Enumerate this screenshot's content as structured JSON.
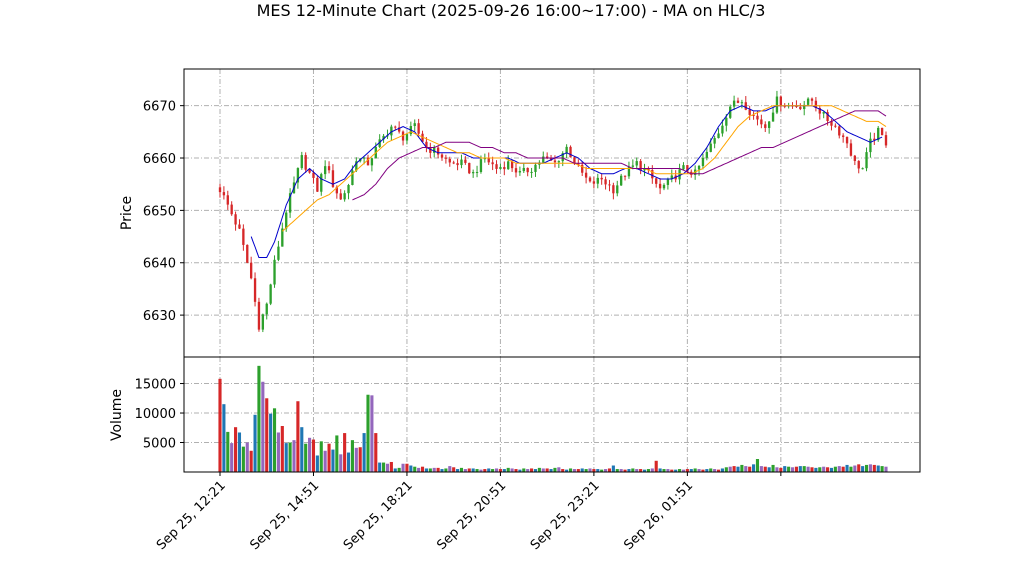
{
  "chart_data": {
    "type": "candlestick",
    "title": "MES 12-Minute Chart (2025-09-26 16:00~17:00) - MA on HLC/3",
    "x_tick_labels": [
      "Sep 25, 12:21",
      "Sep 25, 14:51",
      "Sep 25, 18:21",
      "Sep 25, 20:51",
      "Sep 25, 23:21",
      "Sep 26, 01:51"
    ],
    "price_panel": {
      "ylabel": "Price",
      "ylim": [
        6622,
        6677
      ],
      "yticks": [
        6630,
        6640,
        6650,
        6660,
        6670
      ],
      "grid": true,
      "up_color": "#2ca02c",
      "down_color": "#d62728",
      "close_anchors": [
        [
          0,
          6654
        ],
        [
          2,
          6651
        ],
        [
          5,
          6646
        ],
        [
          8,
          6637
        ],
        [
          10,
          6628
        ],
        [
          12,
          6632
        ],
        [
          14,
          6640
        ],
        [
          17,
          6650
        ],
        [
          19,
          6655
        ],
        [
          21,
          6660
        ],
        [
          23,
          6657
        ],
        [
          25,
          6654
        ],
        [
          27,
          6659
        ],
        [
          29,
          6655
        ],
        [
          31,
          6652
        ],
        [
          33,
          6655
        ],
        [
          35,
          6660
        ],
        [
          38,
          6659
        ],
        [
          41,
          6663
        ],
        [
          44,
          6666
        ],
        [
          47,
          6664
        ],
        [
          50,
          6666
        ],
        [
          53,
          6662
        ],
        [
          56,
          6661
        ],
        [
          59,
          6659
        ],
        [
          62,
          6659
        ],
        [
          65,
          6657
        ],
        [
          68,
          6660
        ],
        [
          71,
          6658
        ],
        [
          74,
          6659
        ],
        [
          77,
          6657
        ],
        [
          80,
          6658
        ],
        [
          83,
          6660
        ],
        [
          86,
          6659
        ],
        [
          89,
          6662
        ],
        [
          92,
          6658
        ],
        [
          95,
          6655
        ],
        [
          98,
          6656
        ],
        [
          101,
          6654
        ],
        [
          104,
          6657
        ],
        [
          107,
          6659
        ],
        [
          110,
          6657
        ],
        [
          113,
          6654
        ],
        [
          116,
          6656
        ],
        [
          119,
          6658
        ],
        [
          122,
          6657
        ],
        [
          125,
          6661
        ],
        [
          128,
          6665
        ],
        [
          131,
          6670
        ],
        [
          134,
          6671
        ],
        [
          137,
          6668
        ],
        [
          140,
          6666
        ],
        [
          143,
          6671
        ],
        [
          146,
          6670
        ],
        [
          149,
          6670
        ],
        [
          152,
          6671
        ],
        [
          155,
          6668
        ],
        [
          158,
          6666
        ],
        [
          161,
          6663
        ],
        [
          163,
          6659
        ],
        [
          165,
          6658
        ],
        [
          167,
          6663
        ],
        [
          169,
          6665
        ],
        [
          171,
          6663
        ]
      ],
      "ma_fast_color": "#0000cc",
      "ma_mid_color": "#ffa500",
      "ma_slow_color": "#800080",
      "ma_fast_anchors": [
        [
          8,
          6645
        ],
        [
          10,
          6641
        ],
        [
          12,
          6641
        ],
        [
          14,
          6644
        ],
        [
          17,
          6651
        ],
        [
          20,
          6656
        ],
        [
          23,
          6658
        ],
        [
          26,
          6656
        ],
        [
          29,
          6655
        ],
        [
          32,
          6656
        ],
        [
          35,
          6659
        ],
        [
          38,
          6661
        ],
        [
          41,
          6663
        ],
        [
          44,
          6665
        ],
        [
          47,
          6666
        ],
        [
          50,
          6665
        ],
        [
          53,
          6662
        ],
        [
          56,
          6661
        ],
        [
          59,
          6661
        ],
        [
          62,
          6661
        ],
        [
          65,
          6660
        ],
        [
          68,
          6660
        ],
        [
          71,
          6660
        ],
        [
          74,
          6660
        ],
        [
          77,
          6659
        ],
        [
          80,
          6659
        ],
        [
          83,
          6659
        ],
        [
          86,
          6660
        ],
        [
          89,
          6661
        ],
        [
          92,
          6660
        ],
        [
          95,
          6658
        ],
        [
          98,
          6657
        ],
        [
          101,
          6657
        ],
        [
          104,
          6658
        ],
        [
          107,
          6658
        ],
        [
          110,
          6657
        ],
        [
          113,
          6656
        ],
        [
          116,
          6656
        ],
        [
          119,
          6657
        ],
        [
          122,
          6659
        ],
        [
          125,
          6662
        ],
        [
          128,
          6666
        ],
        [
          131,
          6669
        ],
        [
          134,
          6670
        ],
        [
          137,
          6669
        ],
        [
          140,
          6669
        ],
        [
          143,
          6670
        ],
        [
          146,
          6670
        ],
        [
          149,
          6670
        ],
        [
          152,
          6670
        ],
        [
          155,
          6669
        ],
        [
          158,
          6667
        ],
        [
          161,
          6665
        ],
        [
          164,
          6664
        ],
        [
          167,
          6663
        ],
        [
          170,
          6664
        ]
      ],
      "ma_mid_anchors": [
        [
          16,
          6646
        ],
        [
          19,
          6648
        ],
        [
          22,
          6650
        ],
        [
          25,
          6652
        ],
        [
          28,
          6653
        ],
        [
          31,
          6655
        ],
        [
          34,
          6657
        ],
        [
          37,
          6659
        ],
        [
          40,
          6661
        ],
        [
          43,
          6663
        ],
        [
          46,
          6664
        ],
        [
          49,
          6665
        ],
        [
          52,
          6664
        ],
        [
          55,
          6663
        ],
        [
          58,
          6662
        ],
        [
          61,
          6661
        ],
        [
          64,
          6661
        ],
        [
          67,
          6660
        ],
        [
          70,
          6660
        ],
        [
          73,
          6660
        ],
        [
          76,
          6659
        ],
        [
          79,
          6659
        ],
        [
          82,
          6659
        ],
        [
          85,
          6659
        ],
        [
          88,
          6659
        ],
        [
          91,
          6659
        ],
        [
          94,
          6658
        ],
        [
          97,
          6658
        ],
        [
          100,
          6658
        ],
        [
          103,
          6658
        ],
        [
          106,
          6658
        ],
        [
          109,
          6658
        ],
        [
          112,
          6657
        ],
        [
          115,
          6657
        ],
        [
          118,
          6657
        ],
        [
          121,
          6657
        ],
        [
          124,
          6658
        ],
        [
          127,
          6660
        ],
        [
          130,
          6663
        ],
        [
          133,
          6666
        ],
        [
          136,
          6668
        ],
        [
          139,
          6669
        ],
        [
          142,
          6670
        ],
        [
          145,
          6670
        ],
        [
          148,
          6670
        ],
        [
          151,
          6670
        ],
        [
          154,
          6670
        ],
        [
          157,
          6670
        ],
        [
          160,
          6669
        ],
        [
          163,
          6668
        ],
        [
          166,
          6667
        ],
        [
          169,
          6667
        ],
        [
          171,
          6666
        ]
      ],
      "ma_slow_anchors": [
        [
          34,
          6652
        ],
        [
          37,
          6653
        ],
        [
          40,
          6655
        ],
        [
          43,
          6658
        ],
        [
          46,
          6660
        ],
        [
          49,
          6661
        ],
        [
          52,
          6662
        ],
        [
          55,
          6662
        ],
        [
          58,
          6663
        ],
        [
          61,
          6663
        ],
        [
          64,
          6663
        ],
        [
          67,
          6662
        ],
        [
          70,
          6662
        ],
        [
          73,
          6661
        ],
        [
          76,
          6661
        ],
        [
          79,
          6660
        ],
        [
          82,
          6660
        ],
        [
          85,
          6660
        ],
        [
          88,
          6660
        ],
        [
          91,
          6659
        ],
        [
          94,
          6659
        ],
        [
          97,
          6659
        ],
        [
          100,
          6659
        ],
        [
          103,
          6659
        ],
        [
          106,
          6658
        ],
        [
          109,
          6658
        ],
        [
          112,
          6658
        ],
        [
          115,
          6658
        ],
        [
          118,
          6658
        ],
        [
          121,
          6657
        ],
        [
          124,
          6657
        ],
        [
          127,
          6658
        ],
        [
          130,
          6659
        ],
        [
          133,
          6660
        ],
        [
          136,
          6661
        ],
        [
          139,
          6662
        ],
        [
          142,
          6662
        ],
        [
          145,
          6663
        ],
        [
          148,
          6664
        ],
        [
          151,
          6665
        ],
        [
          154,
          6666
        ],
        [
          157,
          6667
        ],
        [
          160,
          6668
        ],
        [
          163,
          6669
        ],
        [
          166,
          6669
        ],
        [
          169,
          6669
        ],
        [
          171,
          6668
        ]
      ]
    },
    "volume_panel": {
      "ylabel": "Volume",
      "ylim": [
        0,
        19500
      ],
      "yticks": [
        5000,
        10000,
        15000
      ],
      "grid": true,
      "bar_colors": [
        "#d62728",
        "#1f77b4",
        "#2ca02c",
        "#9467bd"
      ],
      "values": [
        15800,
        11500,
        6800,
        4900,
        7600,
        6700,
        4300,
        5000,
        3600,
        9700,
        18000,
        15300,
        12500,
        9900,
        10800,
        6700,
        7800,
        4900,
        5000,
        5400,
        12000,
        7600,
        4800,
        5800,
        5500,
        2800,
        5200,
        3600,
        4800,
        3800,
        6200,
        3000,
        6600,
        3300,
        5400,
        4100,
        4200,
        6600,
        13100,
        13000,
        6600,
        1600,
        1600,
        1400,
        1700,
        600,
        700,
        1400,
        1400,
        1100,
        900,
        700,
        900,
        600,
        600,
        700,
        700,
        500,
        600,
        1000,
        800,
        500,
        700,
        500,
        600,
        600,
        500,
        400,
        500,
        600,
        500,
        600,
        500,
        500,
        700,
        600,
        500,
        400,
        600,
        500,
        600,
        500,
        700,
        600,
        600,
        500,
        700,
        800,
        500,
        400,
        600,
        500,
        500,
        600,
        500,
        600,
        500,
        500,
        400,
        500,
        600,
        1100,
        500,
        500,
        400,
        500,
        600,
        500,
        500,
        400,
        500,
        600,
        1900,
        600,
        500,
        500,
        400,
        400,
        500,
        400,
        500,
        500,
        600,
        500,
        400,
        500,
        600,
        500,
        400,
        600,
        800,
        900,
        1000,
        900,
        1200,
        1000,
        900,
        1300,
        2200,
        1000,
        900,
        800,
        1200,
        800,
        700,
        1000,
        900,
        800,
        900,
        1000,
        1000,
        900,
        800,
        700,
        800,
        900,
        800,
        700,
        900,
        1000,
        900,
        1200,
        900,
        1100,
        1300,
        1000,
        1200,
        1300,
        1200,
        1100,
        1000,
        900
      ]
    }
  }
}
